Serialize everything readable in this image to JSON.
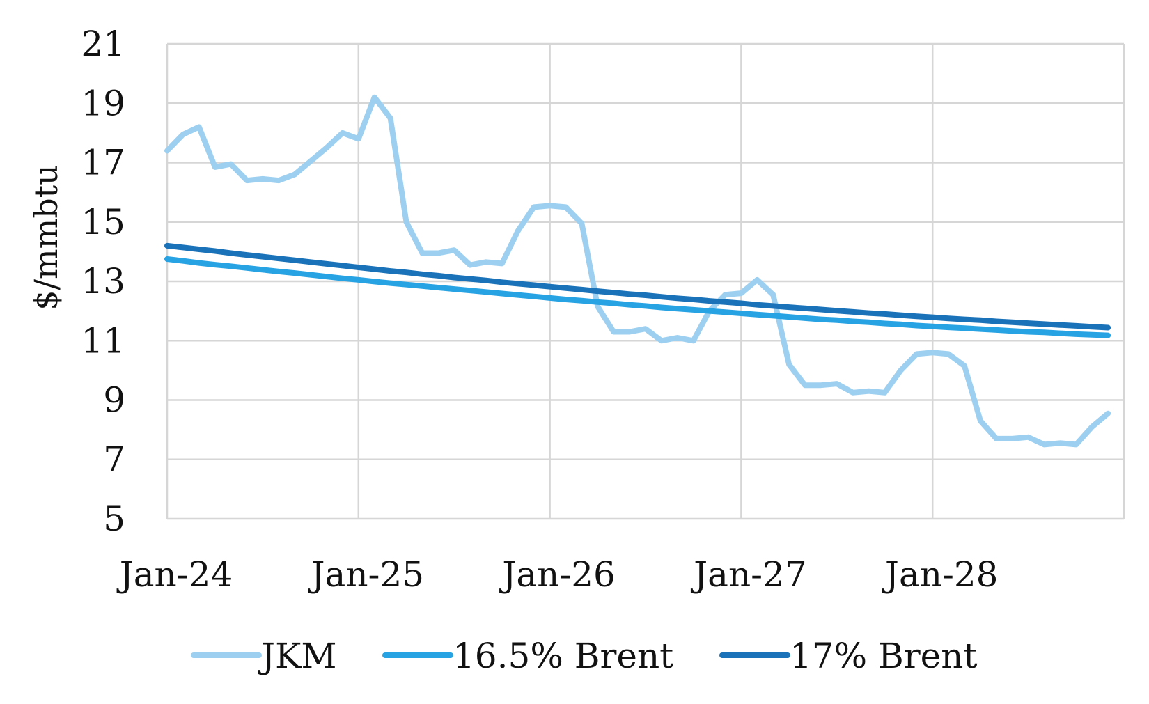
{
  "chart_data": {
    "type": "line",
    "title": "",
    "xlabel": "",
    "ylabel": "$/mmbtu",
    "ylim": [
      5,
      21
    ],
    "yticks": [
      "5",
      "7",
      "9",
      "11",
      "13",
      "15",
      "17",
      "19",
      "21"
    ],
    "xlim": [
      "2024-01",
      "2029-01"
    ],
    "xticks": [
      {
        "date": "2024-01",
        "label": "Jan-24"
      },
      {
        "date": "2025-01",
        "label": "Jan-25"
      },
      {
        "date": "2026-01",
        "label": "Jan-26"
      },
      {
        "date": "2027-01",
        "label": "Jan-27"
      },
      {
        "date": "2028-01",
        "label": "Jan-28"
      }
    ],
    "grid": true,
    "legend_position": "bottom",
    "x": [
      "2024-01",
      "2024-02",
      "2024-03",
      "2024-04",
      "2024-05",
      "2024-06",
      "2024-07",
      "2024-08",
      "2024-09",
      "2024-10",
      "2024-11",
      "2024-12",
      "2025-01",
      "2025-02",
      "2025-03",
      "2025-04",
      "2025-05",
      "2025-06",
      "2025-07",
      "2025-08",
      "2025-09",
      "2025-10",
      "2025-11",
      "2025-12",
      "2026-01",
      "2026-02",
      "2026-03",
      "2026-04",
      "2026-05",
      "2026-06",
      "2026-07",
      "2026-08",
      "2026-09",
      "2026-10",
      "2026-11",
      "2026-12",
      "2027-01",
      "2027-02",
      "2027-03",
      "2027-04",
      "2027-05",
      "2027-06",
      "2027-07",
      "2027-08",
      "2027-09",
      "2027-10",
      "2027-11",
      "2027-12",
      "2028-01",
      "2028-02",
      "2028-03",
      "2028-04",
      "2028-05",
      "2028-06",
      "2028-07",
      "2028-08",
      "2028-09",
      "2028-10",
      "2028-11",
      "2028-12"
    ],
    "series": [
      {
        "name": "JKM",
        "color": "#9DD0F0",
        "values": [
          17.4,
          17.95,
          18.2,
          16.85,
          16.95,
          16.4,
          16.45,
          16.4,
          16.6,
          17.05,
          17.5,
          18.0,
          17.8,
          19.2,
          18.5,
          15.0,
          13.95,
          13.95,
          14.05,
          13.55,
          13.65,
          13.6,
          14.7,
          15.5,
          15.55,
          15.5,
          14.95,
          12.15,
          11.3,
          11.3,
          11.4,
          11.0,
          11.1,
          11.0,
          12.0,
          12.55,
          12.6,
          13.05,
          12.55,
          10.2,
          9.5,
          9.5,
          9.55,
          9.25,
          9.3,
          9.25,
          10.0,
          10.55,
          10.6,
          10.55,
          10.15,
          8.3,
          7.7,
          7.7,
          7.75,
          7.5,
          7.55,
          7.5,
          8.1,
          8.55
        ]
      },
      {
        "name": "16.5% Brent",
        "color": "#27A2E3",
        "values": [
          13.75,
          13.69,
          13.62,
          13.56,
          13.51,
          13.45,
          13.39,
          13.33,
          13.28,
          13.22,
          13.16,
          13.1,
          13.05,
          12.99,
          12.94,
          12.89,
          12.84,
          12.79,
          12.74,
          12.69,
          12.64,
          12.59,
          12.54,
          12.49,
          12.44,
          12.39,
          12.35,
          12.3,
          12.26,
          12.21,
          12.17,
          12.12,
          12.08,
          12.04,
          12.0,
          11.96,
          11.92,
          11.88,
          11.84,
          11.8,
          11.76,
          11.72,
          11.69,
          11.65,
          11.62,
          11.58,
          11.55,
          11.51,
          11.48,
          11.45,
          11.42,
          11.39,
          11.36,
          11.33,
          11.3,
          11.28,
          11.25,
          11.22,
          11.2,
          11.18
        ]
      },
      {
        "name": "17% Brent",
        "color": "#1A72B8",
        "values": [
          14.2,
          14.14,
          14.08,
          14.02,
          13.95,
          13.89,
          13.83,
          13.77,
          13.71,
          13.65,
          13.59,
          13.53,
          13.47,
          13.41,
          13.35,
          13.3,
          13.24,
          13.19,
          13.13,
          13.08,
          13.03,
          12.97,
          12.92,
          12.87,
          12.82,
          12.77,
          12.72,
          12.67,
          12.62,
          12.57,
          12.53,
          12.48,
          12.43,
          12.39,
          12.34,
          12.3,
          12.26,
          12.21,
          12.17,
          12.13,
          12.09,
          12.05,
          12.01,
          11.97,
          11.93,
          11.9,
          11.86,
          11.82,
          11.79,
          11.75,
          11.72,
          11.69,
          11.65,
          11.62,
          11.59,
          11.56,
          11.53,
          11.5,
          11.47,
          11.44
        ]
      }
    ]
  }
}
